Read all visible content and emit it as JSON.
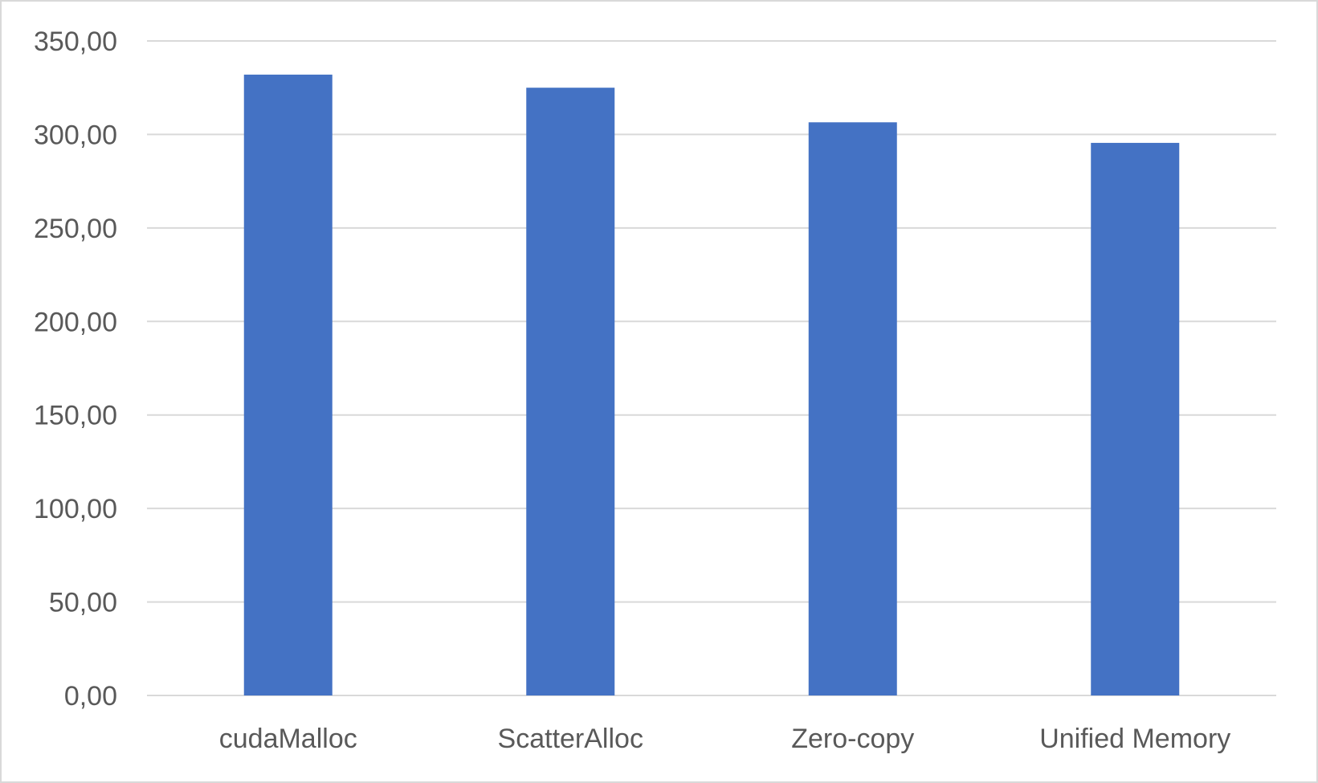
{
  "chart_data": {
    "type": "bar",
    "categories": [
      "cudaMalloc",
      "ScatterAlloc",
      "Zero-copy",
      "Unified Memory"
    ],
    "values": [
      332.0,
      325.0,
      306.5,
      295.5
    ],
    "ylim": [
      0,
      350
    ],
    "y_ticks": [
      0,
      50,
      100,
      150,
      200,
      250,
      300,
      350
    ],
    "y_tick_labels": [
      "0,00",
      "50,00",
      "100,00",
      "150,00",
      "200,00",
      "250,00",
      "300,00",
      "350,00"
    ],
    "title": "",
    "xlabel": "",
    "ylabel": "",
    "grid": true,
    "legend": "none",
    "colors": {
      "bar": "#4472c4",
      "grid": "#d9d9d9",
      "tick_text": "#595959",
      "border": "#d9d9d9"
    }
  }
}
